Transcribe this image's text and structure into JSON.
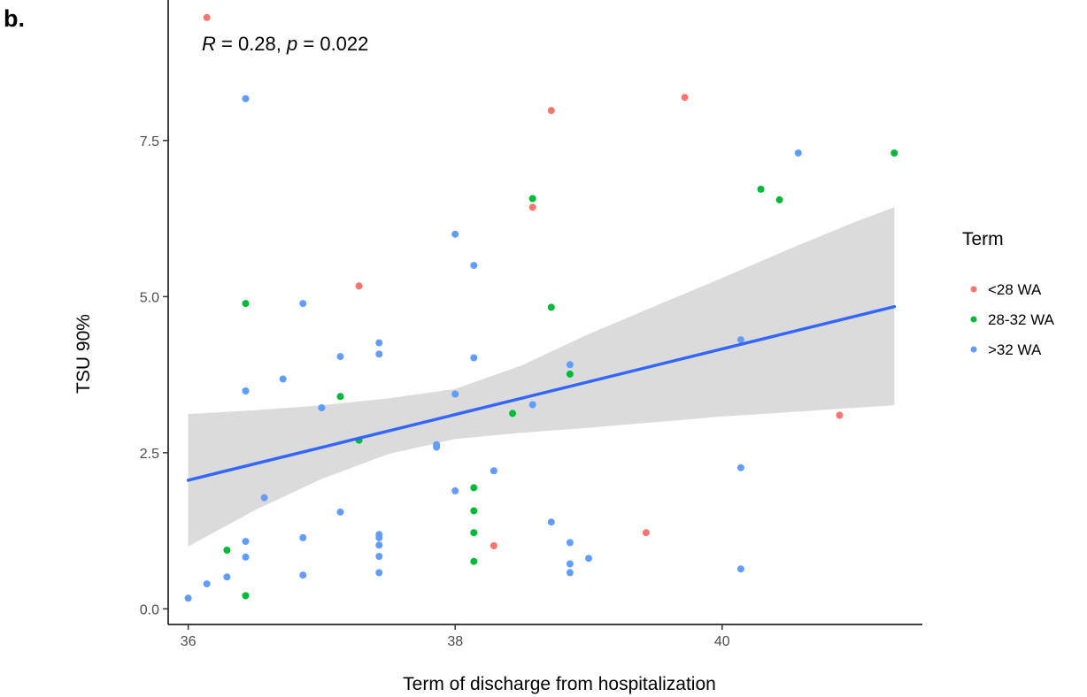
{
  "panel_label": "b.",
  "annotation": {
    "r_symbol": "R",
    "r_text": " = 0.28, ",
    "p_symbol": "p",
    "p_text": " = 0.022"
  },
  "colors": {
    "lt28": "#F8766D",
    "28to32": "#00BA38",
    ">32": "#619CFF",
    "fit_line": "#3366FF",
    "ci_band": "#D9D9D9"
  },
  "chart_data": {
    "type": "scatter",
    "xlabel": "Term of discharge from hospitalization",
    "ylabel": "TSU 90%",
    "xlim": [
      35.85,
      41.5
    ],
    "ylim": [
      -0.25,
      9.75
    ],
    "x_ticks": [
      36,
      38,
      40
    ],
    "y_ticks": [
      0.0,
      2.5,
      5.0,
      7.5
    ],
    "y_tick_labels": [
      "0.0",
      "2.5",
      "5.0",
      "7.5"
    ],
    "grid": false,
    "legend": {
      "title": "Term",
      "position": "right",
      "entries": [
        {
          "label": "<28 WA",
          "color_key": "lt28"
        },
        {
          "label": "28-32 WA",
          "color_key": "28to32"
        },
        {
          "label": ">32 WA",
          "color_key": ">32"
        }
      ]
    },
    "series": [
      {
        "name": "<28 WA",
        "color_key": "lt28",
        "points": [
          [
            36.14,
            9.47
          ],
          [
            38.72,
            7.98
          ],
          [
            39.72,
            8.19
          ],
          [
            37.28,
            5.17
          ],
          [
            38.58,
            6.43
          ],
          [
            40.88,
            3.1
          ],
          [
            39.43,
            1.22
          ],
          [
            38.29,
            1.01
          ]
        ]
      },
      {
        "name": "28-32 WA",
        "color_key": "28to32",
        "points": [
          [
            36.43,
            4.89
          ],
          [
            37.14,
            3.4
          ],
          [
            37.28,
            2.7
          ],
          [
            38.58,
            6.57
          ],
          [
            38.72,
            4.83
          ],
          [
            38.86,
            3.76
          ],
          [
            38.43,
            3.13
          ],
          [
            38.14,
            1.94
          ],
          [
            38.14,
            1.57
          ],
          [
            38.14,
            1.22
          ],
          [
            38.14,
            0.76
          ],
          [
            36.29,
            0.94
          ],
          [
            36.43,
            0.21
          ],
          [
            40.29,
            6.72
          ],
          [
            40.43,
            6.55
          ],
          [
            41.29,
            7.3
          ]
        ]
      },
      {
        "name": ">32 WA",
        "color_key": ">32",
        "points": [
          [
            36.43,
            8.17
          ],
          [
            36.43,
            3.49
          ],
          [
            36.71,
            3.68
          ],
          [
            36.86,
            4.89
          ],
          [
            37.0,
            3.22
          ],
          [
            37.14,
            4.04
          ],
          [
            37.43,
            4.26
          ],
          [
            37.43,
            4.08
          ],
          [
            36.57,
            1.78
          ],
          [
            36.86,
            1.14
          ],
          [
            37.14,
            1.55
          ],
          [
            37.43,
            1.19
          ],
          [
            37.43,
            1.14
          ],
          [
            37.43,
            1.02
          ],
          [
            37.43,
            0.84
          ],
          [
            37.43,
            0.58
          ],
          [
            36.86,
            0.54
          ],
          [
            36.43,
            1.08
          ],
          [
            36.43,
            0.83
          ],
          [
            36.29,
            0.51
          ],
          [
            36.14,
            0.4
          ],
          [
            36.0,
            0.17
          ],
          [
            37.86,
            2.63
          ],
          [
            37.86,
            2.59
          ],
          [
            38.0,
            3.44
          ],
          [
            38.0,
            6.0
          ],
          [
            38.14,
            5.5
          ],
          [
            38.14,
            4.02
          ],
          [
            38.0,
            1.89
          ],
          [
            38.29,
            2.21
          ],
          [
            38.58,
            3.27
          ],
          [
            38.86,
            3.91
          ],
          [
            38.72,
            1.39
          ],
          [
            38.86,
            1.06
          ],
          [
            38.86,
            0.72
          ],
          [
            38.86,
            0.58
          ],
          [
            39.0,
            0.81
          ],
          [
            40.14,
            4.31
          ],
          [
            40.14,
            2.26
          ],
          [
            40.14,
            0.64
          ],
          [
            40.57,
            7.3
          ]
        ]
      }
    ],
    "fit_line": {
      "x": [
        36.0,
        41.29
      ],
      "y": [
        2.06,
        4.84
      ]
    },
    "ci_band": {
      "x": [
        36.0,
        36.5,
        37.0,
        37.5,
        38.0,
        38.5,
        39.0,
        39.5,
        40.0,
        40.5,
        41.0,
        41.29
      ],
      "lower": [
        1.0,
        1.58,
        2.08,
        2.48,
        2.72,
        2.82,
        2.9,
        2.99,
        3.08,
        3.15,
        3.22,
        3.26
      ],
      "upper": [
        3.12,
        3.18,
        3.26,
        3.37,
        3.52,
        3.9,
        4.4,
        4.85,
        5.3,
        5.76,
        6.2,
        6.43
      ]
    }
  }
}
